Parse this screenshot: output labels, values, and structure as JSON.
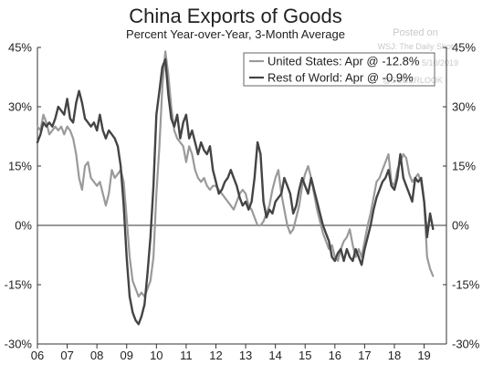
{
  "chart_data": {
    "type": "line",
    "title": "China Exports of Goods",
    "subtitle": "Percent Year-over-Year, 3-Month Average",
    "xlabel": "",
    "ylabel": "",
    "ylim": [
      -30,
      45
    ],
    "yticks": [
      45,
      30,
      15,
      0,
      -15,
      -30
    ],
    "ytick_labels_left": [
      "45%",
      "30%",
      "15%",
      "0%",
      "-15%",
      "-30%"
    ],
    "ytick_labels_right": [
      "45%",
      "30%",
      "15%",
      "0%",
      "-15%",
      "-30%"
    ],
    "xlim": [
      2006.0,
      2019.75
    ],
    "xtick_labels": [
      "06",
      "07",
      "08",
      "09",
      "10",
      "11",
      "12",
      "13",
      "14",
      "15",
      "16",
      "17",
      "18",
      "19"
    ],
    "grid": false,
    "legend_position": "top-right",
    "series": [
      {
        "name": "United States: Apr @ -12.8%",
        "color": "#9a9a9a",
        "x": [
          2006.0,
          2006.1,
          2006.2,
          2006.3,
          2006.4,
          2006.5,
          2006.6,
          2006.7,
          2006.8,
          2006.9,
          2007.0,
          2007.1,
          2007.2,
          2007.3,
          2007.4,
          2007.5,
          2007.6,
          2007.7,
          2007.8,
          2007.9,
          2008.0,
          2008.1,
          2008.2,
          2008.3,
          2008.4,
          2008.5,
          2008.6,
          2008.7,
          2008.8,
          2008.9,
          2009.0,
          2009.1,
          2009.2,
          2009.3,
          2009.4,
          2009.5,
          2009.6,
          2009.7,
          2009.8,
          2009.9,
          2010.0,
          2010.1,
          2010.2,
          2010.3,
          2010.4,
          2010.5,
          2010.6,
          2010.7,
          2010.8,
          2010.9,
          2011.0,
          2011.1,
          2011.2,
          2011.3,
          2011.4,
          2011.5,
          2011.6,
          2011.7,
          2011.8,
          2011.9,
          2012.0,
          2012.1,
          2012.2,
          2012.3,
          2012.4,
          2012.5,
          2012.6,
          2012.7,
          2012.8,
          2012.9,
          2013.0,
          2013.1,
          2013.2,
          2013.3,
          2013.4,
          2013.5,
          2013.6,
          2013.7,
          2013.8,
          2013.9,
          2014.0,
          2014.1,
          2014.2,
          2014.3,
          2014.4,
          2014.5,
          2014.6,
          2014.7,
          2014.8,
          2014.9,
          2015.0,
          2015.1,
          2015.2,
          2015.3,
          2015.4,
          2015.5,
          2015.6,
          2015.7,
          2015.8,
          2015.9,
          2016.0,
          2016.1,
          2016.2,
          2016.3,
          2016.4,
          2016.5,
          2016.6,
          2016.7,
          2016.8,
          2016.9,
          2017.0,
          2017.1,
          2017.2,
          2017.3,
          2017.4,
          2017.5,
          2017.6,
          2017.7,
          2017.8,
          2017.9,
          2018.0,
          2018.1,
          2018.2,
          2018.3,
          2018.4,
          2018.5,
          2018.6,
          2018.7,
          2018.8,
          2018.9,
          2019.0,
          2019.1,
          2019.2,
          2019.3
        ],
        "values": [
          25,
          24,
          28,
          26,
          23,
          24,
          25,
          24,
          25,
          23,
          25,
          24,
          22,
          18,
          12,
          9,
          15,
          16,
          12,
          11,
          10,
          11,
          8,
          5,
          8,
          14,
          12,
          13,
          14,
          11,
          2,
          -8,
          -14,
          -16,
          -18,
          -17,
          -18,
          -16,
          -14,
          -8,
          8,
          20,
          35,
          44,
          38,
          30,
          24,
          22,
          21,
          20,
          16,
          20,
          18,
          14,
          12,
          11,
          12,
          10,
          9,
          10,
          10,
          9,
          8,
          7,
          6,
          5,
          4,
          6,
          8,
          9,
          8,
          5,
          4,
          2,
          0,
          0,
          1,
          3,
          5,
          9,
          12,
          14,
          8,
          4,
          0,
          -2,
          -1,
          2,
          5,
          10,
          13,
          15,
          12,
          8,
          4,
          1,
          -2,
          -4,
          -6,
          -5,
          -8,
          -9,
          -6,
          -4,
          -3,
          -1,
          -5,
          -8,
          -6,
          -8,
          -4,
          0,
          3,
          7,
          11,
          12,
          14,
          16,
          18,
          11,
          10,
          14,
          16,
          18,
          17,
          13,
          11,
          12,
          13,
          11,
          6,
          -8,
          -11,
          -12.8
        ]
      },
      {
        "name": "Rest of World: Apr @ -0.9%",
        "color": "#444444",
        "x": [
          2006.0,
          2006.1,
          2006.2,
          2006.3,
          2006.4,
          2006.5,
          2006.6,
          2006.7,
          2006.8,
          2006.9,
          2007.0,
          2007.1,
          2007.2,
          2007.3,
          2007.4,
          2007.5,
          2007.6,
          2007.7,
          2007.8,
          2007.9,
          2008.0,
          2008.1,
          2008.2,
          2008.3,
          2008.4,
          2008.5,
          2008.6,
          2008.7,
          2008.8,
          2008.9,
          2009.0,
          2009.1,
          2009.2,
          2009.3,
          2009.4,
          2009.5,
          2009.6,
          2009.7,
          2009.8,
          2009.9,
          2010.0,
          2010.1,
          2010.2,
          2010.3,
          2010.4,
          2010.5,
          2010.6,
          2010.7,
          2010.8,
          2010.9,
          2011.0,
          2011.1,
          2011.2,
          2011.3,
          2011.4,
          2011.5,
          2011.6,
          2011.7,
          2011.8,
          2011.9,
          2012.0,
          2012.1,
          2012.2,
          2012.3,
          2012.4,
          2012.5,
          2012.6,
          2012.7,
          2012.8,
          2012.9,
          2013.0,
          2013.1,
          2013.2,
          2013.3,
          2013.4,
          2013.5,
          2013.6,
          2013.7,
          2013.8,
          2013.9,
          2014.0,
          2014.1,
          2014.2,
          2014.3,
          2014.4,
          2014.5,
          2014.6,
          2014.7,
          2014.8,
          2014.9,
          2015.0,
          2015.1,
          2015.2,
          2015.3,
          2015.4,
          2015.5,
          2015.6,
          2015.7,
          2015.8,
          2015.9,
          2016.0,
          2016.1,
          2016.2,
          2016.3,
          2016.4,
          2016.5,
          2016.6,
          2016.7,
          2016.8,
          2016.9,
          2017.0,
          2017.1,
          2017.2,
          2017.3,
          2017.4,
          2017.5,
          2017.6,
          2017.7,
          2017.8,
          2017.9,
          2018.0,
          2018.1,
          2018.2,
          2018.3,
          2018.4,
          2018.5,
          2018.6,
          2018.7,
          2018.8,
          2018.9,
          2019.0,
          2019.1,
          2019.2,
          2019.3
        ],
        "values": [
          21,
          23,
          26,
          25,
          26,
          25,
          27,
          30,
          29,
          28,
          32,
          27,
          26,
          31,
          34,
          31,
          27,
          26,
          25,
          26,
          24,
          28,
          24,
          22,
          24,
          23,
          22,
          20,
          15,
          5,
          -8,
          -18,
          -22,
          -24,
          -25,
          -23,
          -20,
          -12,
          -3,
          10,
          28,
          34,
          40,
          42,
          33,
          27,
          25,
          28,
          22,
          26,
          28,
          22,
          24,
          21,
          18,
          21,
          19,
          18,
          20,
          14,
          11,
          8,
          9,
          11,
          12,
          14,
          12,
          10,
          7,
          5,
          6,
          4,
          6,
          12,
          21,
          18,
          6,
          2,
          4,
          3,
          6,
          7,
          8,
          12,
          10,
          8,
          3,
          5,
          9,
          12,
          10,
          8,
          12,
          9,
          6,
          3,
          0,
          -2,
          -4,
          -8,
          -9,
          -7,
          -6,
          -9,
          -6,
          -8,
          -9,
          -6,
          -8,
          -10,
          -6,
          -3,
          0,
          4,
          7,
          9,
          11,
          12,
          14,
          10,
          9,
          12,
          18,
          12,
          10,
          8,
          6,
          12,
          11,
          12,
          6,
          -3,
          3,
          -0.9
        ]
      }
    ]
  },
  "watermark": {
    "posted_on": "Posted on",
    "source_line": "WSJ: The Daily Shot",
    "date_line": "5/10/2019",
    "brand_line": "@SOBERLOOK"
  }
}
